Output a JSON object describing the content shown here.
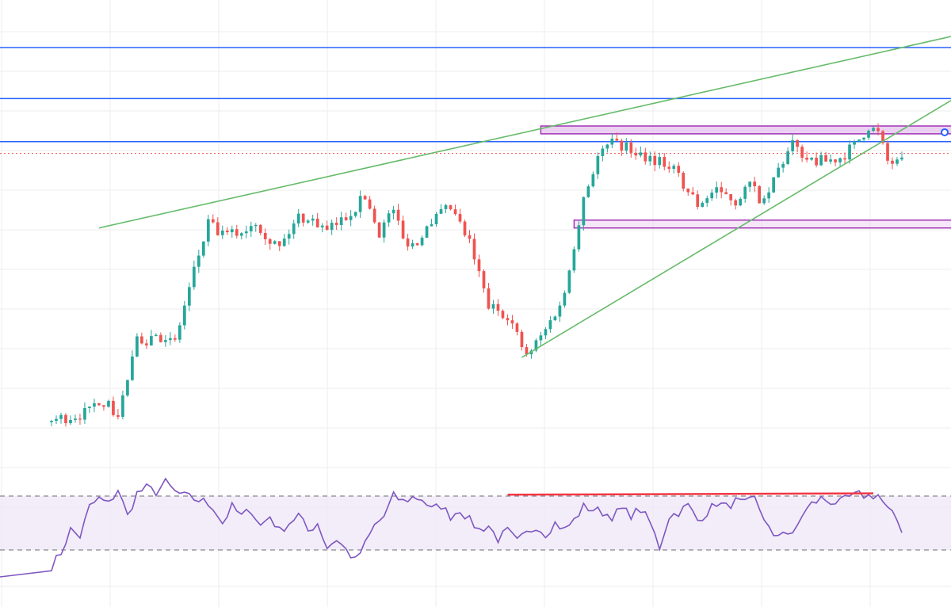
{
  "chart_data": {
    "type": "candlestick",
    "title": "",
    "xlabel": "",
    "ylabel": "",
    "bars": 180,
    "price_range": [
      0,
      100
    ],
    "colors": {
      "up": "#26a69a",
      "down": "#ef5350",
      "grid": "#eeeeee",
      "level": "#2962ff",
      "channel": "#66bb6a",
      "zone": "#9c27b0",
      "zone_fill": "#e9c8f0",
      "rsi": "#7e57c2",
      "rsi_band": "#ede7f6",
      "divergence": "#f23645",
      "last_price": "#ef5350"
    },
    "price_anchors": [
      [
        0,
        5
      ],
      [
        8,
        7
      ],
      [
        10,
        11
      ],
      [
        14,
        6
      ],
      [
        18,
        25
      ],
      [
        22,
        27
      ],
      [
        26,
        25
      ],
      [
        30,
        43
      ],
      [
        33,
        55
      ],
      [
        36,
        52
      ],
      [
        40,
        53
      ],
      [
        43,
        56
      ],
      [
        46,
        51
      ],
      [
        48,
        49
      ],
      [
        52,
        57
      ],
      [
        55,
        56
      ],
      [
        58,
        53
      ],
      [
        62,
        57
      ],
      [
        66,
        62
      ],
      [
        69,
        53
      ],
      [
        72,
        59
      ],
      [
        74,
        51
      ],
      [
        77,
        50
      ],
      [
        80,
        56
      ],
      [
        84,
        59
      ],
      [
        88,
        50
      ],
      [
        92,
        34
      ],
      [
        96,
        32
      ],
      [
        100,
        21
      ],
      [
        104,
        28
      ],
      [
        108,
        37
      ],
      [
        110,
        50
      ],
      [
        112,
        62
      ],
      [
        115,
        72
      ],
      [
        118,
        76
      ],
      [
        122,
        74
      ],
      [
        126,
        72
      ],
      [
        130,
        70
      ],
      [
        133,
        65
      ],
      [
        136,
        60
      ],
      [
        140,
        64
      ],
      [
        144,
        61
      ],
      [
        147,
        65
      ],
      [
        150,
        60
      ],
      [
        153,
        69
      ],
      [
        156,
        75
      ],
      [
        160,
        71
      ],
      [
        163,
        71
      ],
      [
        166,
        72
      ],
      [
        169,
        75
      ],
      [
        172,
        80
      ],
      [
        174,
        78
      ],
      [
        176,
        71
      ],
      [
        179,
        70
      ]
    ],
    "channel_lines": [
      {
        "name": "upper-channel",
        "points": [
          [
            10,
            54
          ],
          [
            179,
            100
          ]
        ]
      },
      {
        "name": "lower-channel",
        "points": [
          [
            99,
            21
          ],
          [
            179,
            79
          ]
        ]
      }
    ],
    "horizontal_levels": [
      100,
      87,
      76
    ],
    "zones": [
      {
        "name": "upper-zone",
        "from": 80,
        "to": 78
      },
      {
        "name": "lower-zone",
        "from": 56,
        "to": 54
      }
    ],
    "last_price": 73,
    "rsi": {
      "range": [
        0,
        100
      ],
      "overbought": 70,
      "oversold": 30,
      "anchors": [
        [
          0,
          18
        ],
        [
          2,
          28
        ],
        [
          4,
          45
        ],
        [
          6,
          40
        ],
        [
          8,
          62
        ],
        [
          10,
          68
        ],
        [
          12,
          64
        ],
        [
          14,
          75
        ],
        [
          16,
          55
        ],
        [
          18,
          72
        ],
        [
          20,
          76
        ],
        [
          22,
          73
        ],
        [
          24,
          80
        ],
        [
          26,
          73
        ],
        [
          28,
          70
        ],
        [
          30,
          68
        ],
        [
          32,
          66
        ],
        [
          34,
          62
        ],
        [
          36,
          50
        ],
        [
          38,
          62
        ],
        [
          40,
          55
        ],
        [
          42,
          60
        ],
        [
          44,
          48
        ],
        [
          46,
          55
        ],
        [
          48,
          44
        ],
        [
          50,
          50
        ],
        [
          52,
          56
        ],
        [
          54,
          44
        ],
        [
          56,
          50
        ],
        [
          58,
          32
        ],
        [
          60,
          38
        ],
        [
          62,
          30
        ],
        [
          64,
          22
        ],
        [
          66,
          34
        ],
        [
          68,
          48
        ],
        [
          70,
          55
        ],
        [
          72,
          70
        ],
        [
          74,
          66
        ],
        [
          76,
          69
        ],
        [
          78,
          68
        ],
        [
          80,
          60
        ],
        [
          82,
          63
        ],
        [
          84,
          55
        ],
        [
          86,
          60
        ],
        [
          88,
          52
        ],
        [
          90,
          45
        ],
        [
          92,
          48
        ],
        [
          94,
          38
        ],
        [
          96,
          44
        ],
        [
          98,
          36
        ],
        [
          100,
          42
        ],
        [
          102,
          48
        ],
        [
          104,
          42
        ],
        [
          106,
          50
        ],
        [
          108,
          45
        ],
        [
          110,
          52
        ],
        [
          112,
          62
        ],
        [
          114,
          60
        ],
        [
          116,
          58
        ],
        [
          118,
          55
        ],
        [
          120,
          60
        ],
        [
          122,
          56
        ],
        [
          124,
          60
        ],
        [
          126,
          50
        ],
        [
          128,
          32
        ],
        [
          130,
          55
        ],
        [
          132,
          58
        ],
        [
          134,
          63
        ],
        [
          136,
          52
        ],
        [
          138,
          58
        ],
        [
          140,
          65
        ],
        [
          142,
          62
        ],
        [
          144,
          66
        ],
        [
          146,
          64
        ],
        [
          148,
          68
        ],
        [
          150,
          54
        ],
        [
          152,
          38
        ],
        [
          154,
          45
        ],
        [
          156,
          40
        ],
        [
          158,
          56
        ],
        [
          160,
          64
        ],
        [
          162,
          68
        ],
        [
          164,
          66
        ],
        [
          166,
          65
        ],
        [
          168,
          69
        ],
        [
          170,
          71
        ],
        [
          172,
          70
        ],
        [
          174,
          71
        ],
        [
          176,
          60
        ],
        [
          178,
          52
        ],
        [
          179,
          45
        ]
      ],
      "divergence_line": {
        "points": [
          [
            96,
            71
          ],
          [
            173,
            72
          ]
        ]
      }
    }
  }
}
